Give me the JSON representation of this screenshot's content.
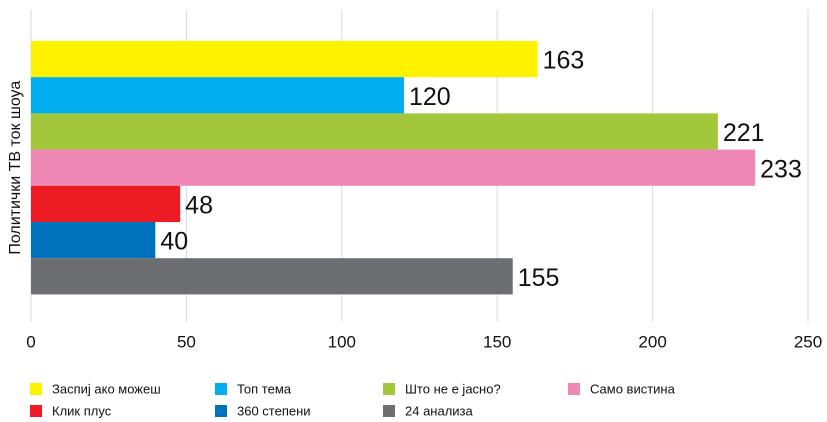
{
  "chart_data": {
    "type": "bar",
    "orientation": "horizontal",
    "categories": [
      "Политички ТВ ток шоуа"
    ],
    "series": [
      {
        "name": "Заспиј ако можеш",
        "color": "#fff200",
        "values": [
          163
        ]
      },
      {
        "name": "Топ тема",
        "color": "#00aeef",
        "values": [
          120
        ]
      },
      {
        "name": "Што не е јасно?",
        "color": "#a2c73b",
        "values": [
          221
        ]
      },
      {
        "name": "Само вистина",
        "color": "#f088b6",
        "values": [
          233
        ]
      },
      {
        "name": "Клик плус",
        "color": "#ed1c24",
        "values": [
          48
        ]
      },
      {
        "name": "360 степени",
        "color": "#0072bc",
        "values": [
          40
        ]
      },
      {
        "name": "24 анализа",
        "color": "#6d6e71",
        "values": [
          155
        ]
      }
    ],
    "xlim": [
      0,
      250
    ],
    "xticks": [
      0,
      50,
      100,
      150,
      200,
      250
    ],
    "grid": true,
    "legend": "bottom"
  }
}
